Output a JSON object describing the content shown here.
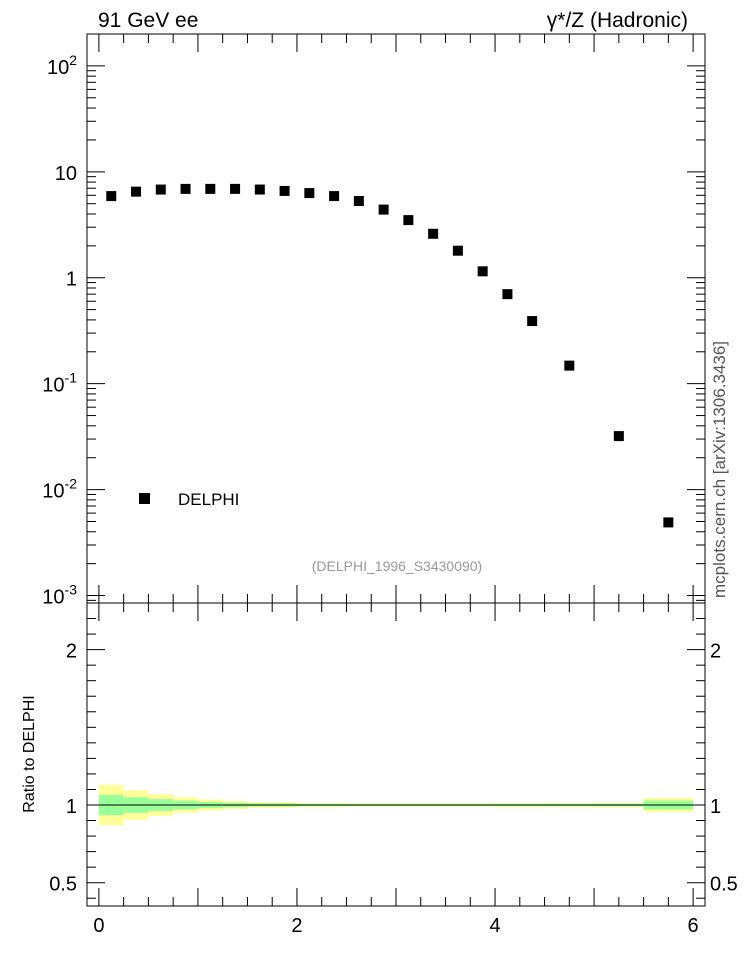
{
  "header": {
    "left": "91 GeV ee",
    "right": "γ*/Z (Hadronic)"
  },
  "side_label": "mcplots.cern.ch [arXiv:1306.3436]",
  "watermark": "(DELPHI_1996_S3430090)",
  "chart_data": [
    {
      "type": "scatter",
      "panel": "main",
      "yscale": "log",
      "ylim": [
        0.00085,
        200
      ],
      "xlim": [
        -0.12,
        6.12
      ],
      "y_tick_labels": [
        {
          "base": "10",
          "exp": "-3",
          "value": 0.001
        },
        {
          "base": "10",
          "exp": "-2",
          "value": 0.01
        },
        {
          "base": "10",
          "exp": "-1",
          "value": 0.1
        },
        {
          "base": "1",
          "exp": "",
          "value": 1
        },
        {
          "base": "10",
          "exp": "",
          "value": 10
        },
        {
          "base": "10",
          "exp": "2",
          "value": 100
        }
      ],
      "legend": {
        "position": "bottom-left",
        "entries": [
          "DELPHI"
        ]
      },
      "series": [
        {
          "name": "DELPHI",
          "color": "#000000",
          "x": [
            0.125,
            0.375,
            0.625,
            0.875,
            1.125,
            1.375,
            1.625,
            1.875,
            2.125,
            2.375,
            2.625,
            2.875,
            3.125,
            3.375,
            3.625,
            3.875,
            4.125,
            4.375,
            4.75,
            5.25,
            5.75
          ],
          "y": [
            5.9,
            6.5,
            6.8,
            6.9,
            6.9,
            6.9,
            6.8,
            6.6,
            6.3,
            5.9,
            5.3,
            4.4,
            3.5,
            2.6,
            1.8,
            1.15,
            0.7,
            0.39,
            0.148,
            0.032,
            0.0049
          ]
        }
      ]
    },
    {
      "type": "area",
      "panel": "ratio",
      "ylabel": "Ratio to DELPHI",
      "ylim": [
        0.35,
        2.3
      ],
      "xlim": [
        -0.12,
        6.12
      ],
      "y_ticks": [
        0.5,
        1,
        2
      ],
      "y_tick_labels": [
        "0.5",
        "1",
        "2"
      ],
      "x_ticks": [
        0,
        2,
        4,
        6
      ],
      "x_tick_labels": [
        "0",
        "2",
        "4",
        "6"
      ],
      "bands": {
        "bins": [
          [
            0,
            0.25
          ],
          [
            0.25,
            0.5
          ],
          [
            0.5,
            0.75
          ],
          [
            0.75,
            1.0
          ],
          [
            1.0,
            1.25
          ],
          [
            1.25,
            1.5
          ],
          [
            1.5,
            2.0
          ],
          [
            2.0,
            2.5
          ],
          [
            2.5,
            3.0
          ],
          [
            3.0,
            3.5
          ],
          [
            3.5,
            4.0
          ],
          [
            4.0,
            4.5
          ],
          [
            4.5,
            5.0
          ],
          [
            5.0,
            5.5
          ],
          [
            5.5,
            6.0
          ]
        ],
        "yellow_half_width": [
          0.13,
          0.095,
          0.07,
          0.05,
          0.036,
          0.026,
          0.018,
          0.012,
          0.01,
          0.01,
          0.01,
          0.012,
          0.012,
          0.014,
          0.045
        ],
        "green_half_width": [
          0.065,
          0.05,
          0.038,
          0.028,
          0.02,
          0.014,
          0.01,
          0.007,
          0.006,
          0.006,
          0.006,
          0.007,
          0.007,
          0.008,
          0.028
        ],
        "yellow_color": "#ffff99",
        "green_color": "#99ff99"
      }
    }
  ]
}
